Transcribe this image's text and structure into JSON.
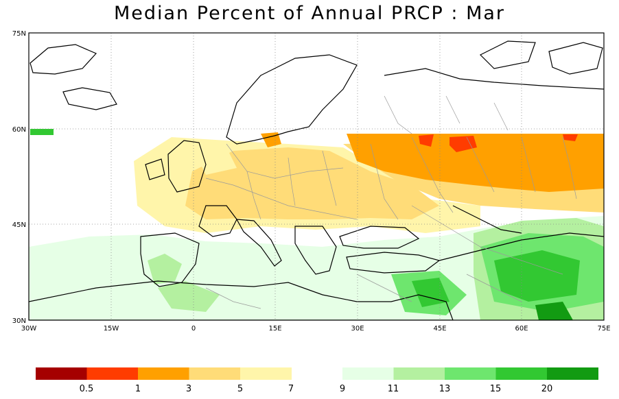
{
  "title": "Median Percent of Annual PRCP :   Mar",
  "map": {
    "lon_range": [
      -30,
      75
    ],
    "lat_range": [
      30,
      75
    ],
    "x_ticks": [
      "30W",
      "15W",
      "0",
      "15E",
      "30E",
      "45E",
      "60E",
      "75E"
    ],
    "y_ticks": [
      "75N",
      "60N",
      "45N",
      "30N"
    ],
    "grid": true
  },
  "colorbar": {
    "bins": [
      {
        "color": "#a50000"
      },
      {
        "color": "#ff3c00"
      },
      {
        "color": "#ffa000"
      },
      {
        "color": "#ffdc78"
      },
      {
        "color": "#fff5aa"
      },
      {
        "color": "#ffffff"
      },
      {
        "color": "#e6ffe6"
      },
      {
        "color": "#b4f0a0"
      },
      {
        "color": "#6ee66e"
      },
      {
        "color": "#32c832"
      },
      {
        "color": "#129b12"
      }
    ],
    "labels": [
      "0.5",
      "1",
      "3",
      "5",
      "7",
      "9",
      "11",
      "13",
      "15",
      "20"
    ]
  }
}
